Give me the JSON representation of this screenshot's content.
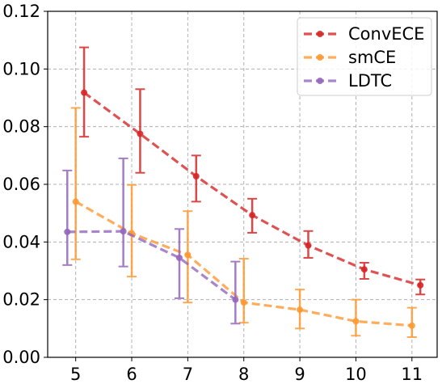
{
  "chart_data": {
    "type": "line",
    "title": "",
    "xlabel": "",
    "ylabel": "",
    "xlim": [
      4.5,
      11.45
    ],
    "ylim": [
      0.0,
      0.12
    ],
    "xticks": [
      5,
      6,
      7,
      8,
      9,
      10,
      11
    ],
    "yticks": [
      0.0,
      0.02,
      0.04,
      0.06,
      0.08,
      0.1,
      0.12
    ],
    "xtick_labels": [
      "5",
      "6",
      "7",
      "8",
      "9",
      "10",
      "11"
    ],
    "ytick_labels": [
      "0.00",
      "0.02",
      "0.04",
      "0.06",
      "0.08",
      "0.10",
      "0.12"
    ],
    "grid": true,
    "legend_position": "top-right",
    "series": [
      {
        "name": "ConvECE",
        "color": "#d62728",
        "x": [
          5.15,
          6.15,
          7.15,
          8.15,
          9.15,
          10.15,
          11.15
        ],
        "y": [
          0.0918,
          0.0775,
          0.0628,
          0.0493,
          0.0388,
          0.0305,
          0.025
        ],
        "err_low": [
          0.0765,
          0.064,
          0.054,
          0.0432,
          0.0345,
          0.0272,
          0.0218
        ],
        "err_high": [
          0.1075,
          0.093,
          0.07,
          0.055,
          0.0438,
          0.0328,
          0.027
        ]
      },
      {
        "name": "smCE",
        "color": "#ff9933",
        "x": [
          5.0,
          6.0,
          7.0,
          8.0,
          9.0,
          10.0,
          11.0
        ],
        "y": [
          0.054,
          0.043,
          0.0355,
          0.019,
          0.0165,
          0.0125,
          0.011
        ],
        "err_low": [
          0.034,
          0.028,
          0.019,
          0.012,
          0.01,
          0.0075,
          0.007
        ],
        "err_high": [
          0.0865,
          0.0598,
          0.0507,
          0.0342,
          0.0235,
          0.02,
          0.0172
        ]
      },
      {
        "name": "LDTC",
        "color": "#9467bd",
        "x": [
          4.85,
          5.85,
          6.85,
          7.85
        ],
        "y": [
          0.0435,
          0.0437,
          0.0345,
          0.02
        ],
        "err_low": [
          0.032,
          0.0315,
          0.0205,
          0.0117
        ],
        "err_high": [
          0.0648,
          0.069,
          0.0445,
          0.0332
        ]
      }
    ]
  }
}
